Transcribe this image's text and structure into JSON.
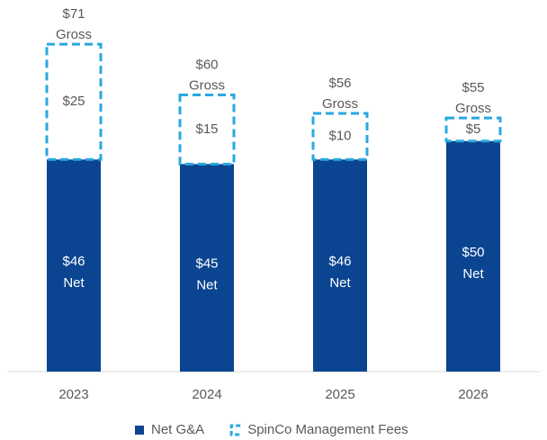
{
  "chart_data": {
    "type": "stacked_bar",
    "categories": [
      "2023",
      "2024",
      "2025",
      "2026"
    ],
    "series": [
      {
        "name": "Net G&A",
        "color": "#0b4591",
        "values": [
          46,
          45,
          46,
          50
        ],
        "value_labels": [
          "$46",
          "$45",
          "$46",
          "$50"
        ],
        "label_suffix": "Net",
        "style": "solid"
      },
      {
        "name": "SpinCo Management Fees",
        "color": "#29a8e0",
        "values": [
          25,
          15,
          10,
          5
        ],
        "value_labels": [
          "$25",
          "$15",
          "$10",
          "$5"
        ],
        "style": "dashed"
      }
    ],
    "totals": [
      71,
      60,
      56,
      55
    ],
    "total_labels": [
      "$71",
      "$60",
      "$56",
      "$55"
    ],
    "total_suffix": "Gross",
    "ylim": [
      0,
      80
    ],
    "legend": "bottom"
  }
}
